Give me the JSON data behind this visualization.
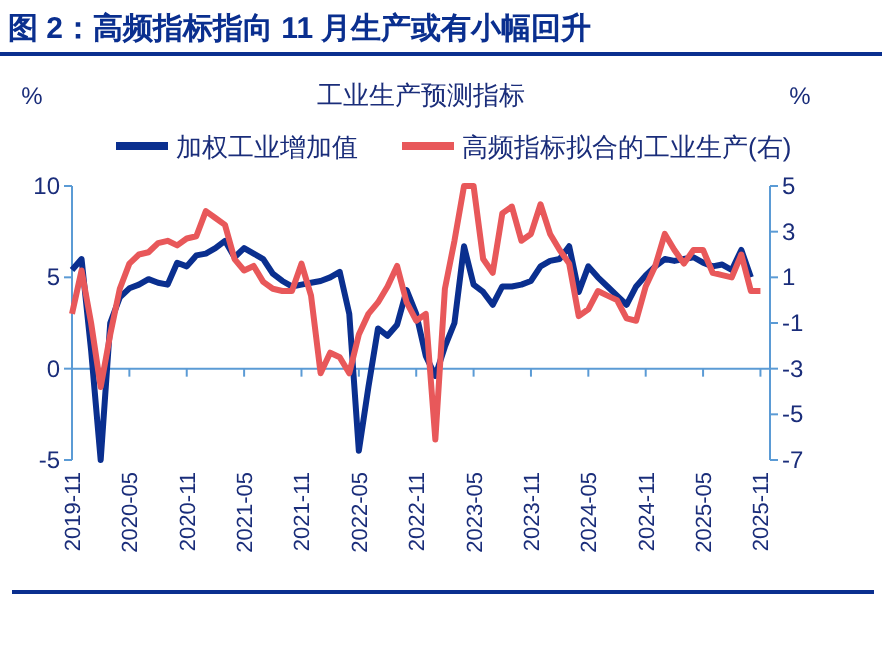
{
  "chart_data": {
    "type": "line",
    "title": "图 2：高频指标指向 11 月生产或有小幅回升",
    "subtitle": "工业生产预测指标",
    "ylabel": "%",
    "y2label": "%",
    "x": [
      "2019-11",
      "2019-12",
      "2020-01",
      "2020-02",
      "2020-03",
      "2020-04",
      "2020-05",
      "2020-06",
      "2020-07",
      "2020-08",
      "2020-09",
      "2020-10",
      "2020-11",
      "2020-12",
      "2021-01",
      "2021-02",
      "2021-03",
      "2021-04",
      "2021-05",
      "2021-06",
      "2021-07",
      "2021-08",
      "2021-09",
      "2021-10",
      "2021-11",
      "2021-12",
      "2022-01",
      "2022-02",
      "2022-03",
      "2022-04",
      "2022-05",
      "2022-06",
      "2022-07",
      "2022-08",
      "2022-09",
      "2022-10",
      "2022-11",
      "2022-12",
      "2023-01",
      "2023-02",
      "2023-03",
      "2023-04",
      "2023-05",
      "2023-06",
      "2023-07",
      "2023-08",
      "2023-09",
      "2023-10",
      "2023-11",
      "2023-12",
      "2024-01",
      "2024-02",
      "2024-03",
      "2024-04",
      "2024-05",
      "2024-06",
      "2024-07",
      "2024-08",
      "2024-09",
      "2024-10",
      "2024-11",
      "2024-12",
      "2025-01",
      "2025-02",
      "2025-03",
      "2025-04",
      "2025-05",
      "2025-06",
      "2025-07",
      "2025-08",
      "2025-09",
      "2025-10",
      "2025-11"
    ],
    "series": [
      {
        "name": "加权工业增加值",
        "color": "#0a2f8f",
        "values": [
          5.4,
          6.0,
          1.0,
          -5.0,
          2.5,
          3.9,
          4.4,
          4.6,
          4.9,
          4.7,
          4.6,
          5.8,
          5.6,
          6.2,
          6.3,
          6.6,
          7.0,
          6.1,
          6.6,
          6.3,
          6.0,
          5.2,
          4.8,
          4.5,
          4.6,
          4.7,
          4.8,
          5.0,
          5.3,
          3.0,
          -4.5,
          -1.0,
          2.2,
          1.8,
          2.4,
          4.3,
          3.0,
          0.7,
          -0.4,
          1.2,
          2.5,
          6.7,
          4.6,
          4.2,
          3.5,
          4.5,
          4.5,
          4.6,
          4.8,
          5.6,
          5.9,
          6.0,
          6.7,
          4.2,
          5.6,
          5.0,
          4.5,
          4.0,
          3.5,
          4.5,
          5.1,
          5.6,
          6.0,
          5.9,
          6.0,
          6.1,
          5.8,
          5.6,
          5.7,
          5.4,
          6.5,
          5.0,
          null
        ]
      },
      {
        "name": "高频指标拟合的工业生产(右)",
        "color": "#e8585a",
        "axis": "y2",
        "values": [
          -0.6,
          1.3,
          -1.0,
          -3.8,
          -1.5,
          0.5,
          1.6,
          2.0,
          2.1,
          2.5,
          2.6,
          2.4,
          2.7,
          2.8,
          3.9,
          3.6,
          3.3,
          1.8,
          1.3,
          1.5,
          0.8,
          0.5,
          0.4,
          0.4,
          1.6,
          0.2,
          -3.2,
          -2.3,
          -2.5,
          -3.2,
          -1.5,
          -0.6,
          -0.1,
          0.6,
          1.5,
          -0.1,
          -0.9,
          -0.6,
          -6.1,
          0.5,
          2.6,
          5.0,
          5.0,
          1.8,
          1.2,
          3.8,
          4.1,
          2.6,
          2.9,
          4.2,
          2.9,
          2.2,
          1.6,
          -0.7,
          -0.4,
          0.4,
          0.2,
          0.0,
          -0.8,
          -0.9,
          0.6,
          1.5,
          2.9,
          2.2,
          1.6,
          2.2,
          2.2,
          1.2,
          1.1,
          1.0,
          2.0,
          0.4,
          0.4
        ]
      }
    ],
    "xlim": [
      "2019-11",
      "2025-12"
    ],
    "xticks": [
      "2019-11",
      "2020-05",
      "2020-11",
      "2021-05",
      "2021-11",
      "2022-05",
      "2022-11",
      "2023-05",
      "2023-11",
      "2024-05",
      "2024-11",
      "2025-05",
      "2025-11"
    ],
    "ylim": [
      -5,
      10
    ],
    "yticks": [
      -5,
      0,
      5,
      10
    ],
    "y2lim": [
      -7,
      5
    ],
    "y2ticks": [
      -7,
      -5,
      -3,
      -1,
      1,
      3,
      5
    ],
    "ref_lines": [
      {
        "axis": "y",
        "value": 0,
        "color": "#5b9bd5"
      }
    ],
    "legend": "top",
    "grid": false
  }
}
